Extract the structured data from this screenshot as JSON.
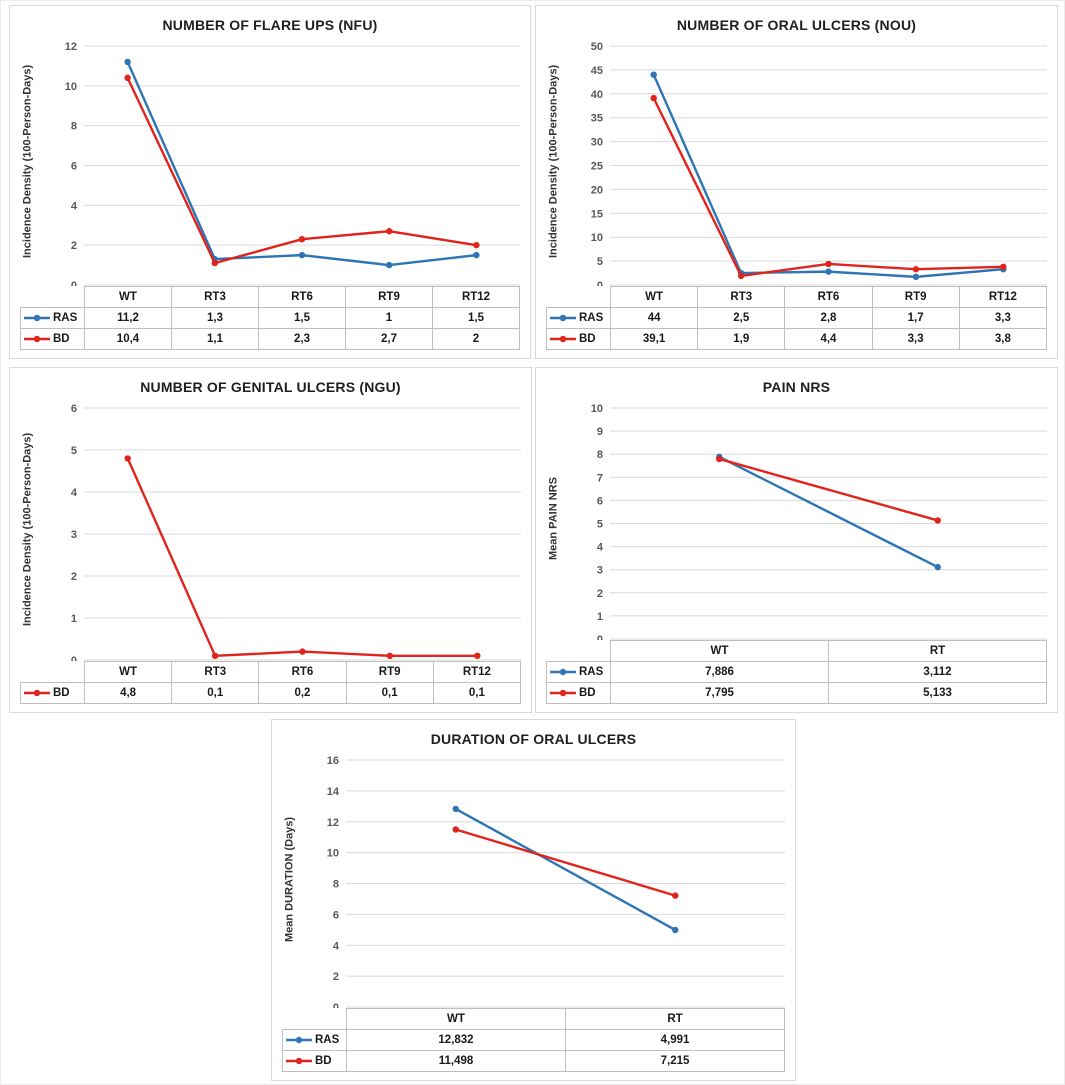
{
  "colors": {
    "ras_blue": "#2E75B6",
    "bd_red": "#E0241C",
    "gridline": "#d9d9d9",
    "table_border": "#bfbfbf",
    "tick_text": "#595959",
    "title_text": "#1f1f1f"
  },
  "chart_data": [
    {
      "type": "line",
      "title": "NUMBER OF FLARE UPS (NFU)",
      "ylabel": "Incidence Density (100-Person-Days)",
      "xlabel": "",
      "ylim": [
        0,
        12
      ],
      "ystep": 2,
      "grid": true,
      "legend_position": "table-left",
      "categories": [
        "WT",
        "RT3",
        "RT6",
        "RT9",
        "RT12"
      ],
      "series": [
        {
          "name": "RAS",
          "color": "#2E75B6",
          "values": [
            11.2,
            1.3,
            1.5,
            1,
            1.5
          ],
          "labels": [
            "11,2",
            "1,3",
            "1,5",
            "1",
            "1,5"
          ]
        },
        {
          "name": "BD",
          "color": "#E0241C",
          "values": [
            10.4,
            1.1,
            2.3,
            2.7,
            2
          ],
          "labels": [
            "10,4",
            "1,1",
            "2,3",
            "2,7",
            "2"
          ]
        }
      ]
    },
    {
      "type": "line",
      "title": "NUMBER OF ORAL ULCERS (NOU)",
      "ylabel": "Incidence Density (100-Person-Days)",
      "xlabel": "",
      "ylim": [
        0,
        50
      ],
      "ystep": 5,
      "grid": true,
      "legend_position": "table-left",
      "categories": [
        "WT",
        "RT3",
        "RT6",
        "RT9",
        "RT12"
      ],
      "series": [
        {
          "name": "RAS",
          "color": "#2E75B6",
          "values": [
            44,
            2.5,
            2.8,
            1.7,
            3.3
          ],
          "labels": [
            "44",
            "2,5",
            "2,8",
            "1,7",
            "3,3"
          ]
        },
        {
          "name": "BD",
          "color": "#E0241C",
          "values": [
            39.1,
            1.9,
            4.4,
            3.3,
            3.8
          ],
          "labels": [
            "39,1",
            "1,9",
            "4,4",
            "3,3",
            "3,8"
          ]
        }
      ]
    },
    {
      "type": "line",
      "title": "NUMBER OF GENITAL ULCERS (NGU)",
      "ylabel": "Incidence Density (100-Person-Days)",
      "xlabel": "",
      "ylim": [
        0,
        6
      ],
      "ystep": 1,
      "grid": true,
      "legend_position": "table-left",
      "categories": [
        "WT",
        "RT3",
        "RT6",
        "RT9",
        "RT12"
      ],
      "series": [
        {
          "name": "BD",
          "color": "#E0241C",
          "values": [
            4.8,
            0.1,
            0.2,
            0.1,
            0.1
          ],
          "labels": [
            "4,8",
            "0,1",
            "0,2",
            "0,1",
            "0,1"
          ]
        }
      ]
    },
    {
      "type": "line",
      "title": "PAIN NRS",
      "ylabel": "Mean PAIN NRS",
      "xlabel": "",
      "ylim": [
        0,
        10
      ],
      "ystep": 1,
      "grid": true,
      "legend_position": "table-left",
      "categories": [
        "WT",
        "RT"
      ],
      "series": [
        {
          "name": "RAS",
          "color": "#2E75B6",
          "values": [
            7.886,
            3.112
          ],
          "labels": [
            "7,886",
            "3,112"
          ]
        },
        {
          "name": "BD",
          "color": "#E0241C",
          "values": [
            7.795,
            5.133
          ],
          "labels": [
            "7,795",
            "5,133"
          ]
        }
      ]
    },
    {
      "type": "line",
      "title": "DURATION OF ORAL ULCERS",
      "ylabel": "Mean DURATION (Days)",
      "xlabel": "",
      "ylim": [
        0,
        16
      ],
      "ystep": 2,
      "grid": true,
      "legend_position": "table-left",
      "categories": [
        "WT",
        "RT"
      ],
      "series": [
        {
          "name": "RAS",
          "color": "#2E75B6",
          "values": [
            12.832,
            4.991
          ],
          "labels": [
            "12,832",
            "4,991"
          ]
        },
        {
          "name": "BD",
          "color": "#E0241C",
          "values": [
            11.498,
            7.215
          ],
          "labels": [
            "11,498",
            "7,215"
          ]
        }
      ]
    }
  ]
}
